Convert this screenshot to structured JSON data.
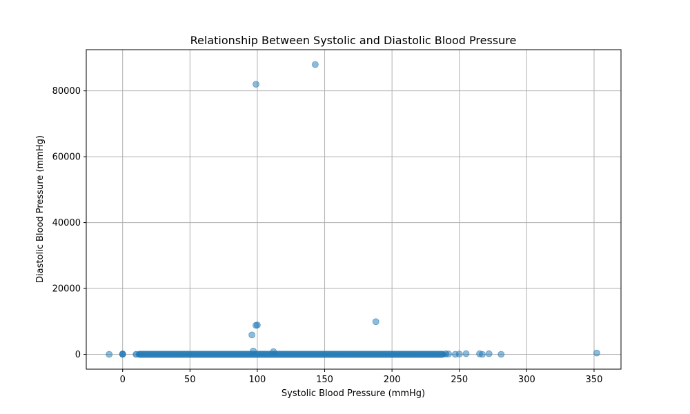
{
  "chart_data": {
    "type": "scatter",
    "title": "Relationship Between Systolic and Diastolic Blood Pressure",
    "xlabel": "Systolic Blood Pressure (mmHg)",
    "ylabel": "Diastolic Blood Pressure (mmHg)",
    "xlim": [
      -27,
      370
    ],
    "ylim": [
      -4500,
      92500
    ],
    "xticks": [
      0,
      50,
      100,
      150,
      200,
      250,
      300,
      350
    ],
    "yticks": [
      0,
      20000,
      40000,
      60000,
      80000
    ],
    "grid": true,
    "marker_color": "#1f77b4",
    "marker_alpha": 0.5,
    "dense_band": {
      "x_range": [
        10,
        240
      ],
      "y": 0
    },
    "points": [
      {
        "x": -10,
        "y": 0
      },
      {
        "x": 0,
        "y": 0
      },
      {
        "x": 0,
        "y": 80
      },
      {
        "x": 0,
        "y": 120
      },
      {
        "x": 10,
        "y": 0
      },
      {
        "x": 96,
        "y": 5900
      },
      {
        "x": 97,
        "y": 1000
      },
      {
        "x": 99,
        "y": 82000
      },
      {
        "x": 99,
        "y": 8800
      },
      {
        "x": 100,
        "y": 8900
      },
      {
        "x": 112,
        "y": 800
      },
      {
        "x": 143,
        "y": 88000
      },
      {
        "x": 188,
        "y": 9900
      },
      {
        "x": 240,
        "y": 150
      },
      {
        "x": 242,
        "y": 100
      },
      {
        "x": 247,
        "y": 0
      },
      {
        "x": 250,
        "y": 80
      },
      {
        "x": 255,
        "y": 200
      },
      {
        "x": 265,
        "y": 150
      },
      {
        "x": 267,
        "y": 0
      },
      {
        "x": 272,
        "y": 180
      },
      {
        "x": 281,
        "y": 0
      },
      {
        "x": 352,
        "y": 400
      }
    ]
  }
}
